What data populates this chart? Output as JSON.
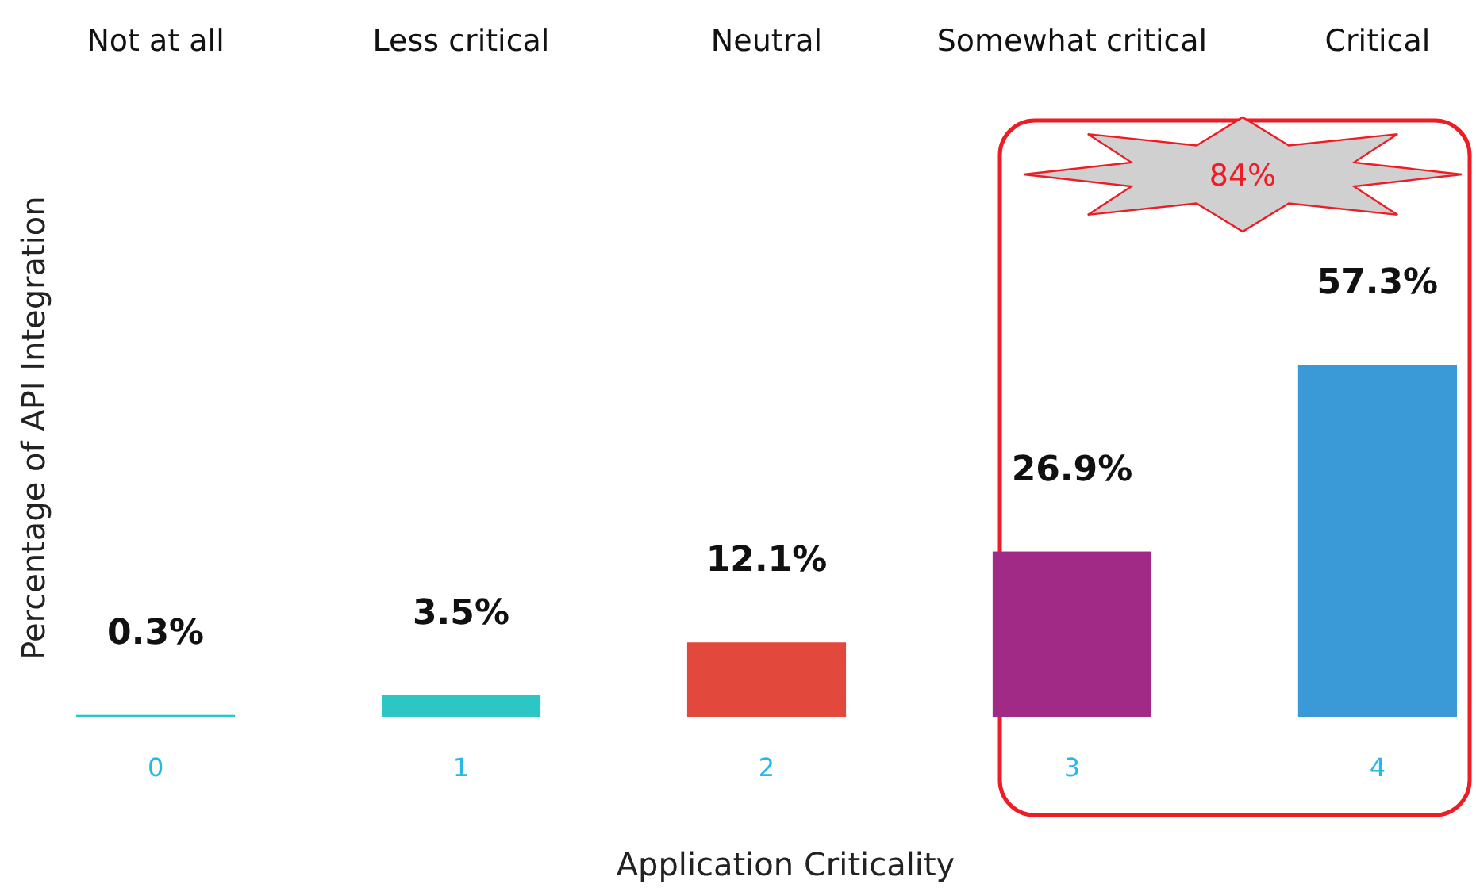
{
  "chart_data": {
    "type": "bar",
    "xlabel": "Application Criticality",
    "ylabel": "Percentage of API Integration",
    "categories": [
      "0",
      "1",
      "2",
      "3",
      "4"
    ],
    "values": [
      0.3,
      3.5,
      12.1,
      26.9,
      57.3
    ],
    "value_labels": [
      "0.3%",
      "3.5%",
      "12.1%",
      "26.9%",
      "57.3%"
    ],
    "colors": [
      "#2cc6c4",
      "#2cc6c4",
      "#e2483c",
      "#a02a86",
      "#3a9ad8"
    ],
    "tick_labels": "x",
    "annotations": [
      "Not at all",
      "Less critical",
      "Neutral",
      "Somewhat critical",
      "Critical",
      "84%"
    ]
  }
}
